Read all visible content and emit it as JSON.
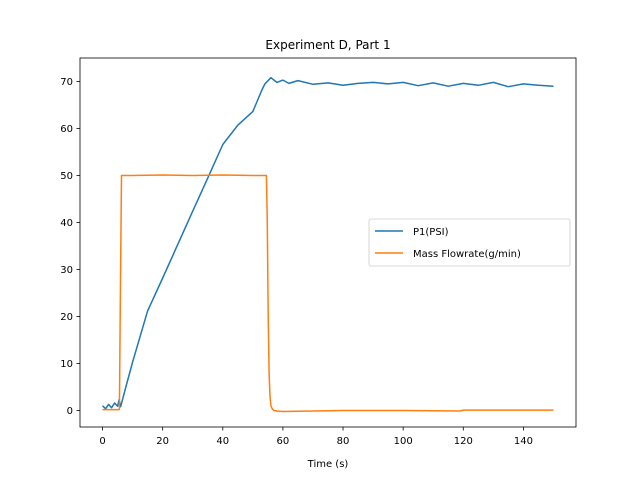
{
  "chart_data": {
    "type": "line",
    "title": "Experiment D, Part 1",
    "xlabel": "Time (s)",
    "ylabel": "",
    "xlim": [
      -7.5,
      157.5
    ],
    "ylim": [
      -3.5,
      75
    ],
    "xticks": [
      0,
      20,
      40,
      60,
      80,
      100,
      120,
      140
    ],
    "yticks": [
      0,
      10,
      20,
      30,
      40,
      50,
      60,
      70
    ],
    "grid": false,
    "legend_position": "center-right",
    "series": [
      {
        "name": "P1(PSI)",
        "color": "#1f77b4",
        "x": [
          0,
          1,
          2,
          3,
          4,
          5,
          5.5,
          6,
          8,
          10,
          15,
          20,
          25,
          30,
          35,
          40,
          45,
          50,
          53,
          54,
          56,
          58,
          60,
          62,
          65,
          70,
          75,
          80,
          85,
          90,
          95,
          100,
          105,
          110,
          115,
          120,
          125,
          130,
          135,
          140,
          145,
          150
        ],
        "y": [
          1.0,
          0.4,
          1.3,
          0.6,
          1.6,
          0.9,
          2.3,
          0.8,
          5.6,
          10.3,
          21.2,
          28.2,
          35.3,
          42.4,
          49.5,
          56.6,
          60.7,
          63.6,
          68.2,
          69.5,
          70.8,
          69.8,
          70.3,
          69.6,
          70.2,
          69.4,
          69.7,
          69.2,
          69.6,
          69.8,
          69.5,
          69.8,
          69.1,
          69.7,
          69.0,
          69.6,
          69.2,
          69.8,
          68.9,
          69.5,
          69.2,
          69.0
        ]
      },
      {
        "name": "Mass Flowrate(g/min)",
        "color": "#ff7f0e",
        "x": [
          0,
          5.6,
          6.0,
          6.3,
          10,
          20,
          30,
          40,
          50,
          54.5,
          54.8,
          55.1,
          55.4,
          55.7,
          56.0,
          56.5,
          57,
          58,
          60,
          70,
          80,
          100,
          119,
          120,
          150
        ],
        "y": [
          0.2,
          0.2,
          30.0,
          50.0,
          50.0,
          50.1,
          50.0,
          50.1,
          50.0,
          50.0,
          40.0,
          20.0,
          8.0,
          3.0,
          1.0,
          0.3,
          0.0,
          -0.1,
          -0.2,
          -0.1,
          0.0,
          0.0,
          -0.1,
          0.1,
          0.1
        ]
      }
    ]
  }
}
